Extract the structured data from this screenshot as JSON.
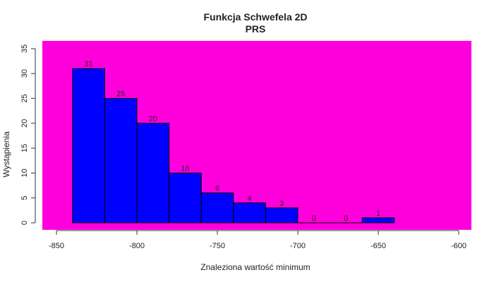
{
  "chart_data": {
    "type": "bar",
    "title": "Funkcja Schwefela 2D",
    "subtitle": "PRS",
    "xlabel": "Znaleziona wartość minimum",
    "ylabel": "Wystąpienia",
    "bins": [
      {
        "start": -840,
        "end": -820,
        "count": 31
      },
      {
        "start": -820,
        "end": -800,
        "count": 25
      },
      {
        "start": -800,
        "end": -780,
        "count": 20
      },
      {
        "start": -780,
        "end": -760,
        "count": 10
      },
      {
        "start": -760,
        "end": -740,
        "count": 6
      },
      {
        "start": -740,
        "end": -720,
        "count": 4
      },
      {
        "start": -720,
        "end": -700,
        "count": 3
      },
      {
        "start": -700,
        "end": -680,
        "count": 0
      },
      {
        "start": -680,
        "end": -660,
        "count": 0
      },
      {
        "start": -660,
        "end": -640,
        "count": 1
      }
    ],
    "xlim": [
      -850,
      -600
    ],
    "ylim": [
      0,
      35
    ],
    "x_ticks": [
      "-850",
      "-800",
      "-750",
      "-700",
      "-650",
      "-600"
    ],
    "y_ticks": [
      "0",
      "5",
      "10",
      "15",
      "20",
      "25",
      "30",
      "35"
    ],
    "grid": false,
    "colors": {
      "background": "#ff00dd",
      "bar": "#0000ff",
      "title": "#0000cc",
      "subtitle": "#ff22cc"
    }
  }
}
